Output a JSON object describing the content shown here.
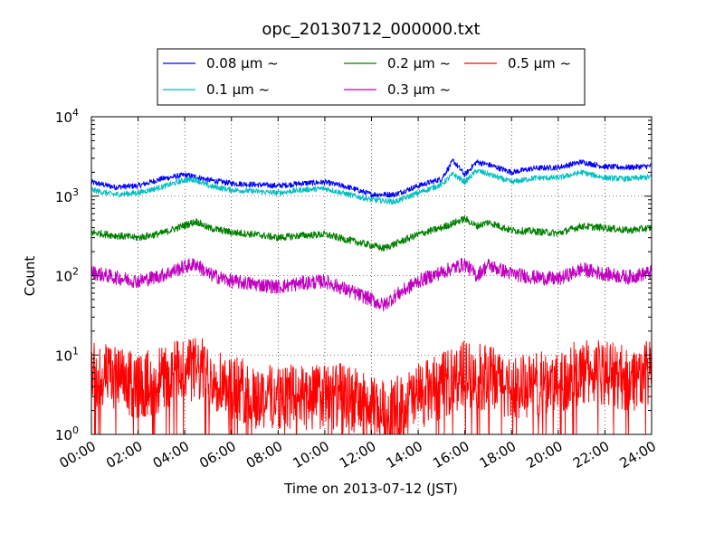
{
  "chart_data": {
    "type": "line",
    "title": "opc_20130712_000000.txt",
    "xlabel": "Time on 2013-07-12 (JST)",
    "ylabel": "Count",
    "y_scale": "log",
    "ylim": [
      1,
      10000
    ],
    "xlim": [
      "00:00",
      "24:00"
    ],
    "x_ticks": [
      "00:00",
      "02:00",
      "04:00",
      "06:00",
      "08:00",
      "10:00",
      "12:00",
      "14:00",
      "16:00",
      "18:00",
      "20:00",
      "22:00",
      "24:00"
    ],
    "y_ticks": [
      {
        "value": 1,
        "base": "10",
        "exp": "0"
      },
      {
        "value": 10,
        "base": "10",
        "exp": "1"
      },
      {
        "value": 100,
        "base": "10",
        "exp": "2"
      },
      {
        "value": 1000,
        "base": "10",
        "exp": "3"
      },
      {
        "value": 10000,
        "base": "10",
        "exp": "4"
      }
    ],
    "grid": true,
    "legend_position": "top-center",
    "series": [
      {
        "name": "0.08 µm ~",
        "color": "#0000ff",
        "x": [
          "00:00",
          "01:00",
          "02:00",
          "03:00",
          "04:00",
          "04:30",
          "05:00",
          "06:00",
          "07:00",
          "08:00",
          "09:00",
          "10:00",
          "11:00",
          "12:00",
          "13:00",
          "14:00",
          "15:00",
          "15:30",
          "16:00",
          "16:30",
          "17:00",
          "18:00",
          "19:00",
          "20:00",
          "21:00",
          "22:00",
          "23:00",
          "24:00"
        ],
        "values": [
          1500,
          1300,
          1350,
          1650,
          1850,
          1750,
          1600,
          1450,
          1400,
          1350,
          1450,
          1500,
          1300,
          1050,
          1050,
          1350,
          1650,
          2800,
          1850,
          2700,
          2500,
          2000,
          2250,
          2300,
          2700,
          2350,
          2300,
          2400
        ]
      },
      {
        "name": "0.1 µm ~",
        "color": "#00bfbf",
        "x": [
          "00:00",
          "01:00",
          "02:00",
          "03:00",
          "04:00",
          "04:30",
          "05:00",
          "06:00",
          "07:00",
          "08:00",
          "09:00",
          "10:00",
          "11:00",
          "12:00",
          "13:00",
          "14:00",
          "15:00",
          "15:30",
          "16:00",
          "16:30",
          "17:00",
          "18:00",
          "19:00",
          "20:00",
          "21:00",
          "22:00",
          "23:00",
          "24:00"
        ],
        "values": [
          1200,
          1050,
          1100,
          1300,
          1600,
          1600,
          1350,
          1200,
          1150,
          1100,
          1200,
          1250,
          1050,
          900,
          850,
          1100,
          1400,
          1900,
          1500,
          2100,
          1900,
          1500,
          1700,
          1700,
          2000,
          1700,
          1650,
          1750
        ]
      },
      {
        "name": "0.2 µm ~",
        "color": "#007f00",
        "x": [
          "00:00",
          "01:00",
          "02:00",
          "03:00",
          "04:00",
          "04:30",
          "05:00",
          "06:00",
          "07:00",
          "08:00",
          "09:00",
          "10:00",
          "11:00",
          "12:00",
          "12:30",
          "13:00",
          "14:00",
          "15:00",
          "16:00",
          "16:30",
          "17:00",
          "18:00",
          "19:00",
          "20:00",
          "21:00",
          "22:00",
          "23:00",
          "24:00"
        ],
        "values": [
          350,
          320,
          300,
          340,
          430,
          480,
          400,
          350,
          330,
          300,
          320,
          330,
          280,
          240,
          220,
          250,
          330,
          400,
          520,
          420,
          470,
          370,
          360,
          340,
          420,
          400,
          370,
          400
        ]
      },
      {
        "name": "0.3 µm ~",
        "color": "#bf00bf",
        "x": [
          "00:00",
          "01:00",
          "02:00",
          "03:00",
          "04:00",
          "04:30",
          "05:00",
          "06:00",
          "07:00",
          "08:00",
          "09:00",
          "10:00",
          "11:00",
          "12:00",
          "12:30",
          "13:00",
          "14:00",
          "15:00",
          "16:00",
          "16:30",
          "17:00",
          "18:00",
          "19:00",
          "20:00",
          "21:00",
          "22:00",
          "23:00",
          "24:00"
        ],
        "values": [
          110,
          95,
          85,
          100,
          130,
          140,
          105,
          85,
          78,
          72,
          80,
          85,
          65,
          50,
          42,
          55,
          85,
          110,
          140,
          100,
          135,
          105,
          95,
          90,
          120,
          105,
          95,
          110
        ]
      },
      {
        "name": "0.5 µm ~",
        "color": "#ff0000",
        "x": [
          "00:00",
          "01:00",
          "02:00",
          "03:00",
          "04:00",
          "05:00",
          "06:00",
          "07:00",
          "08:00",
          "09:00",
          "10:00",
          "11:00",
          "12:00",
          "13:00",
          "14:00",
          "15:00",
          "16:00",
          "17:00",
          "18:00",
          "19:00",
          "20:00",
          "21:00",
          "22:00",
          "23:00",
          "24:00"
        ],
        "values": [
          6,
          5,
          4,
          5,
          7,
          6,
          4,
          3,
          3,
          3,
          3,
          3,
          2,
          2,
          3,
          4,
          6,
          5,
          4,
          4,
          5,
          6,
          6,
          5,
          6
        ]
      }
    ]
  }
}
